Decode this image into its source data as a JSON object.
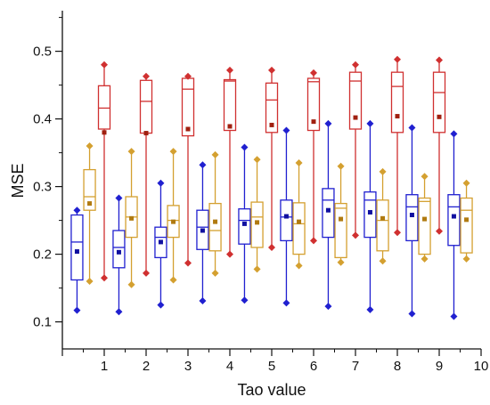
{
  "chart_data": {
    "type": "box",
    "xlabel": "Tao value",
    "ylabel": "MSE",
    "xlim": [
      0,
      10
    ],
    "ylim": [
      0.06,
      0.56
    ],
    "x_ticks": [
      "1",
      "2",
      "3",
      "4",
      "5",
      "6",
      "7",
      "8",
      "9",
      "10"
    ],
    "y_ticks": [
      "0.1",
      "0.2",
      "0.3",
      "0.4",
      "0.5"
    ],
    "grid": false,
    "series": [
      {
        "color": "#2020d0",
        "median_color": "#1010a0",
        "boxes": [
          {
            "x": 0.35,
            "min": 0.117,
            "q1": 0.162,
            "median": 0.218,
            "q3": 0.258,
            "max": 0.265,
            "mean": 0.204
          },
          {
            "x": 1.35,
            "min": 0.115,
            "q1": 0.18,
            "median": 0.21,
            "q3": 0.235,
            "max": 0.283,
            "mean": 0.203
          },
          {
            "x": 2.35,
            "min": 0.125,
            "q1": 0.195,
            "median": 0.225,
            "q3": 0.24,
            "max": 0.305,
            "mean": 0.218
          },
          {
            "x": 3.35,
            "min": 0.131,
            "q1": 0.207,
            "median": 0.24,
            "q3": 0.265,
            "max": 0.332,
            "mean": 0.235
          },
          {
            "x": 4.35,
            "min": 0.132,
            "q1": 0.215,
            "median": 0.25,
            "q3": 0.267,
            "max": 0.358,
            "mean": 0.245
          },
          {
            "x": 5.35,
            "min": 0.128,
            "q1": 0.22,
            "median": 0.255,
            "q3": 0.28,
            "max": 0.383,
            "mean": 0.256
          },
          {
            "x": 6.35,
            "min": 0.123,
            "q1": 0.225,
            "median": 0.28,
            "q3": 0.297,
            "max": 0.393,
            "mean": 0.265
          },
          {
            "x": 7.35,
            "min": 0.118,
            "q1": 0.225,
            "median": 0.28,
            "q3": 0.292,
            "max": 0.393,
            "mean": 0.262
          },
          {
            "x": 8.35,
            "min": 0.112,
            "q1": 0.22,
            "median": 0.27,
            "q3": 0.288,
            "max": 0.387,
            "mean": 0.258
          },
          {
            "x": 9.35,
            "min": 0.108,
            "q1": 0.213,
            "median": 0.27,
            "q3": 0.288,
            "max": 0.378,
            "mean": 0.256
          }
        ]
      },
      {
        "color": "#d4a030",
        "median_color": "#b07a10",
        "boxes": [
          {
            "x": 0.65,
            "min": 0.16,
            "q1": 0.265,
            "median": 0.285,
            "q3": 0.325,
            "max": 0.36,
            "mean": 0.275
          },
          {
            "x": 1.65,
            "min": 0.155,
            "q1": 0.225,
            "median": 0.255,
            "q3": 0.285,
            "max": 0.352,
            "mean": 0.253
          },
          {
            "x": 2.65,
            "min": 0.162,
            "q1": 0.225,
            "median": 0.25,
            "q3": 0.272,
            "max": 0.352,
            "mean": 0.248
          },
          {
            "x": 3.65,
            "min": 0.172,
            "q1": 0.205,
            "median": 0.235,
            "q3": 0.275,
            "max": 0.347,
            "mean": 0.248
          },
          {
            "x": 4.65,
            "min": 0.178,
            "q1": 0.21,
            "median": 0.255,
            "q3": 0.277,
            "max": 0.34,
            "mean": 0.247
          },
          {
            "x": 5.65,
            "min": 0.183,
            "q1": 0.2,
            "median": 0.245,
            "q3": 0.276,
            "max": 0.335,
            "mean": 0.248
          },
          {
            "x": 6.65,
            "min": 0.188,
            "q1": 0.195,
            "median": 0.268,
            "q3": 0.275,
            "max": 0.33,
            "mean": 0.252
          },
          {
            "x": 7.65,
            "min": 0.19,
            "q1": 0.205,
            "median": 0.25,
            "q3": 0.28,
            "max": 0.322,
            "mean": 0.253
          },
          {
            "x": 8.65,
            "min": 0.193,
            "q1": 0.2,
            "median": 0.278,
            "q3": 0.283,
            "max": 0.315,
            "mean": 0.252
          },
          {
            "x": 9.65,
            "min": 0.193,
            "q1": 0.202,
            "median": 0.265,
            "q3": 0.283,
            "max": 0.305,
            "mean": 0.251
          }
        ]
      },
      {
        "color": "#d03030",
        "median_color": "#a02010",
        "boxes": [
          {
            "x": 1.0,
            "min": 0.165,
            "q1": 0.385,
            "median": 0.416,
            "q3": 0.449,
            "max": 0.48,
            "mean": 0.38
          },
          {
            "x": 2.0,
            "min": 0.172,
            "q1": 0.379,
            "median": 0.426,
            "q3": 0.457,
            "max": 0.463,
            "mean": 0.379
          },
          {
            "x": 3.0,
            "min": 0.187,
            "q1": 0.375,
            "median": 0.444,
            "q3": 0.46,
            "max": 0.463,
            "mean": 0.385
          },
          {
            "x": 4.0,
            "min": 0.2,
            "q1": 0.383,
            "median": 0.456,
            "q3": 0.458,
            "max": 0.472,
            "mean": 0.389
          },
          {
            "x": 5.0,
            "min": 0.21,
            "q1": 0.38,
            "median": 0.428,
            "q3": 0.453,
            "max": 0.472,
            "mean": 0.391
          },
          {
            "x": 6.0,
            "min": 0.22,
            "q1": 0.383,
            "median": 0.455,
            "q3": 0.46,
            "max": 0.468,
            "mean": 0.396
          },
          {
            "x": 7.0,
            "min": 0.228,
            "q1": 0.385,
            "median": 0.456,
            "q3": 0.469,
            "max": 0.48,
            "mean": 0.402
          },
          {
            "x": 8.0,
            "min": 0.232,
            "q1": 0.38,
            "median": 0.448,
            "q3": 0.469,
            "max": 0.488,
            "mean": 0.404
          },
          {
            "x": 9.0,
            "min": 0.234,
            "q1": 0.38,
            "median": 0.439,
            "q3": 0.469,
            "max": 0.487,
            "mean": 0.403
          }
        ]
      }
    ]
  }
}
